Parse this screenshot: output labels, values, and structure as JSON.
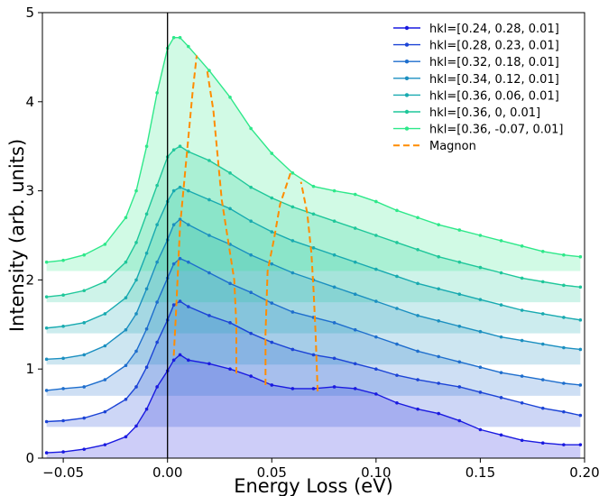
{
  "chart_data": {
    "type": "line",
    "xlabel": "Energy Loss (eV)",
    "ylabel": "Intensity (arb. units)",
    "xlim": [
      -0.06,
      0.2
    ],
    "ylim": [
      0,
      5
    ],
    "xticks": [
      -0.05,
      0.0,
      0.05,
      0.1,
      0.15,
      0.2
    ],
    "xtick_labels": [
      "−0.05",
      "0.00",
      "0.05",
      "0.10",
      "0.15",
      "0.20"
    ],
    "yticks": [
      0,
      1,
      2,
      3,
      4,
      5
    ],
    "ytick_labels": [
      "0",
      "1",
      "2",
      "3",
      "4",
      "5"
    ],
    "legend_position": "top-right",
    "vertical_line_x": 0.0,
    "series": [
      {
        "name": "hkl=[0.24, 0.28, 0.01]",
        "color": "#1a1ae0",
        "baseline": 0.0,
        "points": [
          [
            -0.058,
            0.06
          ],
          [
            -0.05,
            0.07
          ],
          [
            -0.04,
            0.1
          ],
          [
            -0.03,
            0.15
          ],
          [
            -0.02,
            0.24
          ],
          [
            -0.015,
            0.36
          ],
          [
            -0.01,
            0.55
          ],
          [
            -0.005,
            0.8
          ],
          [
            0.0,
            0.98
          ],
          [
            0.003,
            1.1
          ],
          [
            0.006,
            1.16
          ],
          [
            0.01,
            1.1
          ],
          [
            0.02,
            1.06
          ],
          [
            0.03,
            1.0
          ],
          [
            0.04,
            0.92
          ],
          [
            0.05,
            0.82
          ],
          [
            0.06,
            0.78
          ],
          [
            0.07,
            0.78
          ],
          [
            0.08,
            0.8
          ],
          [
            0.09,
            0.78
          ],
          [
            0.1,
            0.72
          ],
          [
            0.11,
            0.62
          ],
          [
            0.12,
            0.55
          ],
          [
            0.13,
            0.5
          ],
          [
            0.14,
            0.42
          ],
          [
            0.15,
            0.32
          ],
          [
            0.16,
            0.26
          ],
          [
            0.17,
            0.2
          ],
          [
            0.18,
            0.17
          ],
          [
            0.19,
            0.15
          ],
          [
            0.198,
            0.15
          ]
        ]
      },
      {
        "name": "hkl=[0.28, 0.23, 0.01]",
        "color": "#1c44d6",
        "baseline": 0.35,
        "points": [
          [
            -0.058,
            0.41
          ],
          [
            -0.05,
            0.42
          ],
          [
            -0.04,
            0.45
          ],
          [
            -0.03,
            0.52
          ],
          [
            -0.02,
            0.66
          ],
          [
            -0.015,
            0.8
          ],
          [
            -0.01,
            1.02
          ],
          [
            -0.005,
            1.3
          ],
          [
            0.0,
            1.55
          ],
          [
            0.003,
            1.72
          ],
          [
            0.006,
            1.76
          ],
          [
            0.01,
            1.7
          ],
          [
            0.02,
            1.6
          ],
          [
            0.03,
            1.52
          ],
          [
            0.04,
            1.4
          ],
          [
            0.05,
            1.3
          ],
          [
            0.06,
            1.22
          ],
          [
            0.07,
            1.16
          ],
          [
            0.08,
            1.12
          ],
          [
            0.09,
            1.06
          ],
          [
            0.1,
            1.0
          ],
          [
            0.11,
            0.93
          ],
          [
            0.12,
            0.88
          ],
          [
            0.13,
            0.84
          ],
          [
            0.14,
            0.8
          ],
          [
            0.15,
            0.74
          ],
          [
            0.16,
            0.68
          ],
          [
            0.17,
            0.62
          ],
          [
            0.18,
            0.56
          ],
          [
            0.19,
            0.52
          ],
          [
            0.198,
            0.48
          ]
        ]
      },
      {
        "name": "hkl=[0.32, 0.18, 0.01]",
        "color": "#1e6ecd",
        "baseline": 0.7,
        "points": [
          [
            -0.058,
            0.76
          ],
          [
            -0.05,
            0.78
          ],
          [
            -0.04,
            0.8
          ],
          [
            -0.03,
            0.88
          ],
          [
            -0.02,
            1.04
          ],
          [
            -0.015,
            1.2
          ],
          [
            -0.01,
            1.45
          ],
          [
            -0.005,
            1.75
          ],
          [
            0.0,
            2.02
          ],
          [
            0.003,
            2.18
          ],
          [
            0.006,
            2.24
          ],
          [
            0.01,
            2.2
          ],
          [
            0.02,
            2.08
          ],
          [
            0.03,
            1.96
          ],
          [
            0.04,
            1.86
          ],
          [
            0.05,
            1.74
          ],
          [
            0.06,
            1.64
          ],
          [
            0.07,
            1.58
          ],
          [
            0.08,
            1.52
          ],
          [
            0.09,
            1.44
          ],
          [
            0.1,
            1.36
          ],
          [
            0.11,
            1.28
          ],
          [
            0.12,
            1.2
          ],
          [
            0.13,
            1.14
          ],
          [
            0.14,
            1.08
          ],
          [
            0.15,
            1.02
          ],
          [
            0.16,
            0.96
          ],
          [
            0.17,
            0.92
          ],
          [
            0.18,
            0.88
          ],
          [
            0.19,
            0.84
          ],
          [
            0.198,
            0.82
          ]
        ]
      },
      {
        "name": "hkl=[0.34, 0.12, 0.01]",
        "color": "#1b8fc0",
        "baseline": 1.05,
        "points": [
          [
            -0.058,
            1.11
          ],
          [
            -0.05,
            1.12
          ],
          [
            -0.04,
            1.16
          ],
          [
            -0.03,
            1.26
          ],
          [
            -0.02,
            1.44
          ],
          [
            -0.015,
            1.62
          ],
          [
            -0.01,
            1.9
          ],
          [
            -0.005,
            2.2
          ],
          [
            0.0,
            2.45
          ],
          [
            0.003,
            2.62
          ],
          [
            0.006,
            2.68
          ],
          [
            0.01,
            2.62
          ],
          [
            0.02,
            2.5
          ],
          [
            0.03,
            2.4
          ],
          [
            0.04,
            2.28
          ],
          [
            0.05,
            2.18
          ],
          [
            0.06,
            2.08
          ],
          [
            0.07,
            2.0
          ],
          [
            0.08,
            1.92
          ],
          [
            0.09,
            1.84
          ],
          [
            0.1,
            1.76
          ],
          [
            0.11,
            1.68
          ],
          [
            0.12,
            1.6
          ],
          [
            0.13,
            1.54
          ],
          [
            0.14,
            1.48
          ],
          [
            0.15,
            1.42
          ],
          [
            0.16,
            1.36
          ],
          [
            0.17,
            1.32
          ],
          [
            0.18,
            1.28
          ],
          [
            0.19,
            1.24
          ],
          [
            0.198,
            1.22
          ]
        ]
      },
      {
        "name": "hkl=[0.36, 0.06, 0.01]",
        "color": "#18aab0",
        "baseline": 1.4,
        "points": [
          [
            -0.058,
            1.46
          ],
          [
            -0.05,
            1.48
          ],
          [
            -0.04,
            1.52
          ],
          [
            -0.03,
            1.62
          ],
          [
            -0.02,
            1.8
          ],
          [
            -0.015,
            2.0
          ],
          [
            -0.01,
            2.3
          ],
          [
            -0.005,
            2.62
          ],
          [
            0.0,
            2.88
          ],
          [
            0.003,
            3.0
          ],
          [
            0.006,
            3.04
          ],
          [
            0.01,
            3.0
          ],
          [
            0.02,
            2.9
          ],
          [
            0.03,
            2.8
          ],
          [
            0.04,
            2.66
          ],
          [
            0.05,
            2.54
          ],
          [
            0.06,
            2.44
          ],
          [
            0.07,
            2.36
          ],
          [
            0.08,
            2.28
          ],
          [
            0.09,
            2.2
          ],
          [
            0.1,
            2.12
          ],
          [
            0.11,
            2.04
          ],
          [
            0.12,
            1.96
          ],
          [
            0.13,
            1.9
          ],
          [
            0.14,
            1.84
          ],
          [
            0.15,
            1.78
          ],
          [
            0.16,
            1.72
          ],
          [
            0.17,
            1.66
          ],
          [
            0.18,
            1.62
          ],
          [
            0.19,
            1.58
          ],
          [
            0.198,
            1.55
          ]
        ]
      },
      {
        "name": "hkl=[0.36, 0, 0.01]",
        "color": "#1fc79a",
        "baseline": 1.75,
        "points": [
          [
            -0.058,
            1.81
          ],
          [
            -0.05,
            1.83
          ],
          [
            -0.04,
            1.88
          ],
          [
            -0.03,
            1.98
          ],
          [
            -0.02,
            2.2
          ],
          [
            -0.015,
            2.42
          ],
          [
            -0.01,
            2.74
          ],
          [
            -0.005,
            3.06
          ],
          [
            0.0,
            3.38
          ],
          [
            0.003,
            3.46
          ],
          [
            0.006,
            3.5
          ],
          [
            0.01,
            3.44
          ],
          [
            0.02,
            3.34
          ],
          [
            0.03,
            3.2
          ],
          [
            0.04,
            3.04
          ],
          [
            0.05,
            2.92
          ],
          [
            0.06,
            2.82
          ],
          [
            0.07,
            2.74
          ],
          [
            0.08,
            2.66
          ],
          [
            0.09,
            2.58
          ],
          [
            0.1,
            2.5
          ],
          [
            0.11,
            2.42
          ],
          [
            0.12,
            2.34
          ],
          [
            0.13,
            2.26
          ],
          [
            0.14,
            2.2
          ],
          [
            0.15,
            2.14
          ],
          [
            0.16,
            2.08
          ],
          [
            0.17,
            2.02
          ],
          [
            0.18,
            1.98
          ],
          [
            0.19,
            1.94
          ],
          [
            0.198,
            1.92
          ]
        ]
      },
      {
        "name": "hkl=[0.36, -0.07, 0.01]",
        "color": "#2ee88a",
        "baseline": 2.1,
        "points": [
          [
            -0.058,
            2.2
          ],
          [
            -0.05,
            2.22
          ],
          [
            -0.04,
            2.28
          ],
          [
            -0.03,
            2.4
          ],
          [
            -0.02,
            2.7
          ],
          [
            -0.015,
            3.0
          ],
          [
            -0.01,
            3.5
          ],
          [
            -0.005,
            4.1
          ],
          [
            0.0,
            4.6
          ],
          [
            0.003,
            4.72
          ],
          [
            0.006,
            4.72
          ],
          [
            0.01,
            4.62
          ],
          [
            0.02,
            4.35
          ],
          [
            0.03,
            4.05
          ],
          [
            0.04,
            3.7
          ],
          [
            0.05,
            3.42
          ],
          [
            0.06,
            3.2
          ],
          [
            0.07,
            3.05
          ],
          [
            0.08,
            3.0
          ],
          [
            0.09,
            2.96
          ],
          [
            0.1,
            2.88
          ],
          [
            0.11,
            2.78
          ],
          [
            0.12,
            2.7
          ],
          [
            0.13,
            2.62
          ],
          [
            0.14,
            2.56
          ],
          [
            0.15,
            2.5
          ],
          [
            0.16,
            2.44
          ],
          [
            0.17,
            2.38
          ],
          [
            0.18,
            2.32
          ],
          [
            0.19,
            2.28
          ],
          [
            0.198,
            2.26
          ]
        ]
      }
    ],
    "magnon": {
      "name": "Magnon",
      "color": "#ff8c00",
      "curves": [
        [
          [
            0.003,
            1.15
          ],
          [
            0.004,
            1.6
          ],
          [
            0.005,
            2.1
          ],
          [
            0.006,
            2.6
          ],
          [
            0.008,
            3.1
          ],
          [
            0.01,
            3.6
          ],
          [
            0.012,
            4.1
          ],
          [
            0.014,
            4.52
          ]
        ],
        [
          [
            0.033,
            0.95
          ],
          [
            0.033,
            1.5
          ],
          [
            0.032,
            2.0
          ],
          [
            0.029,
            2.45
          ],
          [
            0.026,
            2.9
          ],
          [
            0.024,
            3.4
          ],
          [
            0.022,
            3.9
          ],
          [
            0.019,
            4.35
          ]
        ],
        [
          [
            0.047,
            0.82
          ],
          [
            0.047,
            1.4
          ],
          [
            0.048,
            2.1
          ],
          [
            0.051,
            2.45
          ],
          [
            0.054,
            2.85
          ],
          [
            0.059,
            3.2
          ]
        ],
        [
          [
            0.072,
            0.75
          ],
          [
            0.071,
            1.4
          ],
          [
            0.07,
            1.9
          ],
          [
            0.069,
            2.3
          ],
          [
            0.067,
            2.75
          ],
          [
            0.064,
            3.1
          ]
        ]
      ]
    }
  }
}
